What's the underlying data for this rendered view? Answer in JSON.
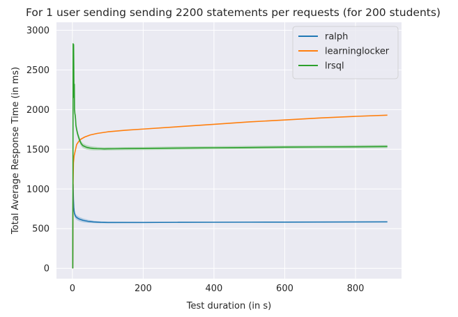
{
  "chart_data": {
    "type": "line",
    "title": "For 1 user sending sending 2200 statements per requests (for 200 students)",
    "xlabel": "Test duration (in s)",
    "ylabel": "Total Average Response Time (in ms)",
    "xlim": [
      -45,
      930
    ],
    "ylim": [
      -130,
      3100
    ],
    "xticks": [
      0,
      200,
      400,
      600,
      800
    ],
    "yticks": [
      0,
      500,
      1000,
      1500,
      2000,
      2500,
      3000
    ],
    "grid": true,
    "background": "#eaeaf2",
    "legend_position": "top-right",
    "series": [
      {
        "name": "ralph",
        "color": "#1f77b4",
        "x": [
          1,
          2,
          3,
          4,
          5,
          6,
          8,
          10,
          14,
          20,
          30,
          45,
          60,
          80,
          100,
          150,
          200,
          300,
          400,
          500,
          600,
          700,
          800,
          890
        ],
        "y": [
          0,
          1060,
          870,
          770,
          720,
          690,
          665,
          650,
          635,
          620,
          605,
          592,
          585,
          580,
          578,
          578,
          578,
          580,
          581,
          582,
          583,
          584,
          585,
          586
        ],
        "band": [
          0,
          80,
          60,
          50,
          45,
          40,
          35,
          32,
          30,
          28,
          25,
          20,
          15,
          12,
          10,
          8,
          7,
          6,
          5,
          5,
          5,
          5,
          5,
          5
        ]
      },
      {
        "name": "learninglocker",
        "color": "#ff7f0e",
        "x": [
          1,
          2,
          3,
          5,
          8,
          12,
          18,
          25,
          35,
          50,
          70,
          100,
          150,
          200,
          300,
          400,
          500,
          600,
          700,
          800,
          890
        ],
        "y": [
          0,
          1080,
          1330,
          1420,
          1480,
          1560,
          1600,
          1630,
          1655,
          1680,
          1700,
          1720,
          1740,
          1755,
          1785,
          1815,
          1845,
          1870,
          1895,
          1915,
          1930
        ],
        "band": [
          0,
          40,
          30,
          25,
          20,
          15,
          12,
          10,
          8,
          6,
          5,
          5,
          5,
          5,
          5,
          5,
          5,
          5,
          5,
          5,
          5
        ]
      },
      {
        "name": "lrsql",
        "color": "#2ca02c",
        "x": [
          1,
          1.5,
          2,
          2.5,
          3,
          3.5,
          4,
          4.5,
          5,
          5.5,
          6,
          6.5,
          7,
          8,
          9,
          10,
          12,
          15,
          20,
          25,
          30,
          40,
          50,
          60,
          70,
          80,
          90,
          100,
          120,
          150,
          200,
          250,
          300,
          350,
          400,
          450,
          500,
          550,
          600,
          700,
          800,
          890
        ],
        "y": [
          0,
          1100,
          2830,
          2600,
          2300,
          2820,
          2550,
          2200,
          2150,
          2320,
          2000,
          1980,
          1950,
          1930,
          1880,
          1800,
          1750,
          1690,
          1620,
          1570,
          1545,
          1525,
          1515,
          1510,
          1508,
          1507,
          1505,
          1506,
          1507,
          1509,
          1510,
          1513,
          1515,
          1517,
          1519,
          1521,
          1523,
          1525,
          1527,
          1530,
          1532,
          1535
        ],
        "band": [
          0,
          50,
          130,
          150,
          120,
          100,
          120,
          110,
          100,
          90,
          80,
          70,
          60,
          55,
          50,
          50,
          45,
          40,
          35,
          32,
          30,
          28,
          26,
          24,
          22,
          20,
          20,
          20,
          20,
          20,
          20,
          20,
          20,
          20,
          20,
          20,
          20,
          20,
          20,
          20,
          20,
          20
        ]
      }
    ]
  }
}
